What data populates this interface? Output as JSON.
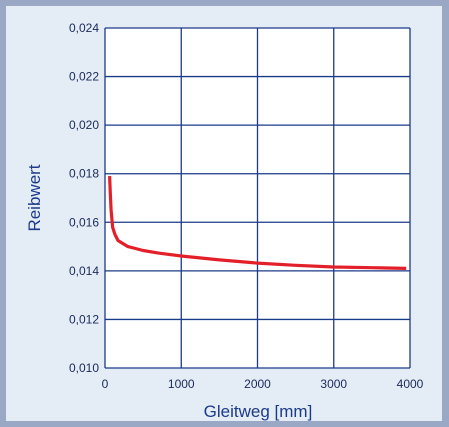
{
  "chart_data": {
    "type": "line",
    "title": "",
    "xlabel": "Gleitweg [mm]",
    "ylabel": "Reibwert",
    "xlim": [
      0,
      4000
    ],
    "ylim": [
      0.01,
      0.024
    ],
    "xticks": [
      0,
      1000,
      2000,
      3000,
      4000
    ],
    "xtick_labels": [
      "0",
      "1000",
      "2000",
      "3000",
      "4000"
    ],
    "yticks": [
      0.01,
      0.012,
      0.014,
      0.016,
      0.018,
      0.02,
      0.022,
      0.024
    ],
    "ytick_labels": [
      "0,010",
      "0,012",
      "0,014",
      "0,016",
      "0,018",
      "0,020",
      "0,022",
      "0,024"
    ],
    "grid": true,
    "legend": "none",
    "colors": {
      "series": "#e3202a",
      "grid": "#1b3a8a",
      "plot_background": "#ffffff",
      "frame_background": "#e4ecf6",
      "page_background": "#9aa7c5"
    },
    "series": [
      {
        "x": [
          60,
          70,
          80,
          100,
          130,
          170,
          220,
          300,
          400,
          500,
          700,
          1000,
          1500,
          2000,
          2500,
          3000,
          3500,
          3950
        ],
        "y": [
          0.0179,
          0.0172,
          0.0165,
          0.0158,
          0.0155,
          0.01525,
          0.01515,
          0.015,
          0.01492,
          0.01484,
          0.01473,
          0.01461,
          0.01445,
          0.01432,
          0.01423,
          0.01416,
          0.01413,
          0.0141
        ]
      }
    ]
  }
}
